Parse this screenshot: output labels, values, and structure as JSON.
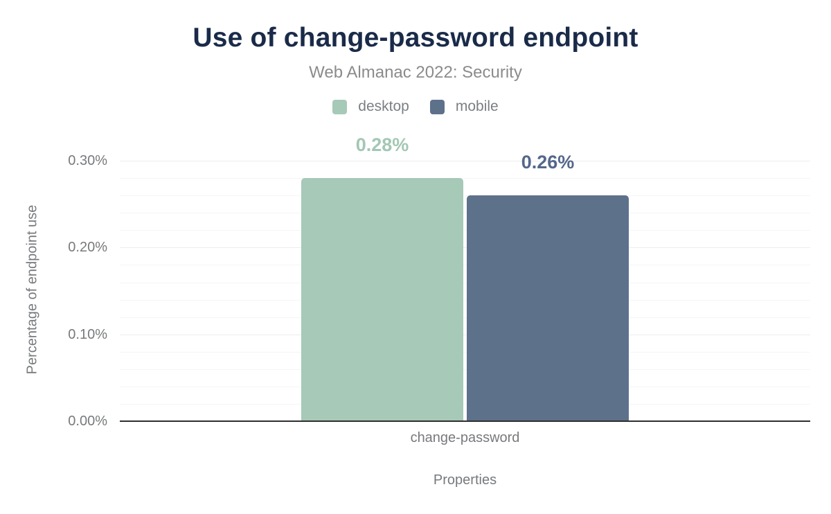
{
  "chart_data": {
    "type": "bar",
    "title": "Use of change-password endpoint",
    "subtitle": "Web Almanac 2022: Security",
    "xlabel": "Properties",
    "ylabel": "Percentage of endpoint use",
    "categories": [
      "change-password"
    ],
    "series": [
      {
        "name": "desktop",
        "values": [
          0.28
        ],
        "labels": [
          "0.28%"
        ],
        "color": "#a6c9b8",
        "label_color": "#a3c7b4"
      },
      {
        "name": "mobile",
        "values": [
          0.26
        ],
        "labels": [
          "0.26%"
        ],
        "color": "#5e718b",
        "label_color": "#54678c"
      }
    ],
    "ylim": [
      0,
      0.3
    ],
    "y_major_step": 0.1,
    "y_minor_step": 0.02,
    "y_tick_labels": [
      "0.00%",
      "0.10%",
      "0.20%",
      "0.30%"
    ],
    "grid": true,
    "legend_position": "top"
  },
  "colors": {
    "title": "#1a2b49",
    "subtitle": "#8b8b8b",
    "axis_text": "#77797c",
    "axis_line": "#2e2e2e",
    "gridline_minor": "#f5f5f5",
    "gridline_major": "#ececec",
    "background": "#ffffff"
  }
}
